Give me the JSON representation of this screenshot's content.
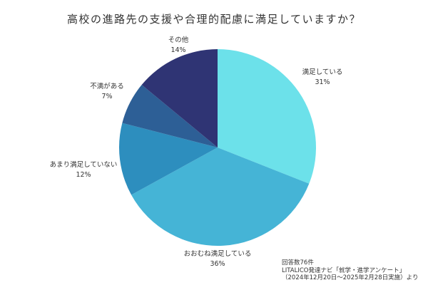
{
  "title": "高校の進路先の支援や合理的配慮に満足していますか？",
  "chart_data": {
    "type": "pie",
    "title": "高校の進路先の支援や合理的配慮に満足していますか？",
    "categories": [
      "満足している",
      "おおむね満足している",
      "あまり満足していない",
      "不満がある",
      "その他"
    ],
    "values": [
      31,
      36,
      12,
      7,
      14
    ],
    "unit": "%",
    "colors": [
      "#6ce1ea",
      "#45b4d6",
      "#2d8ebe",
      "#2d5f96",
      "#2f3474"
    ],
    "start_angle": "top, clockwise",
    "legend": "none (direct labels)"
  },
  "labels": [
    {
      "name": "満足している",
      "pct": "31%"
    },
    {
      "name": "おおむね満足している",
      "pct": "36%"
    },
    {
      "name": "あまり満足していない",
      "pct": "12%"
    },
    {
      "name": "不満がある",
      "pct": "7%"
    },
    {
      "name": "その他",
      "pct": "14%"
    }
  ],
  "footnote": {
    "line1": "回答数76件",
    "line2": "LITALICO発達ナビ「就学・進学アンケート」",
    "line3": "（2024年12月20日～2025年2月28日実施）より"
  }
}
